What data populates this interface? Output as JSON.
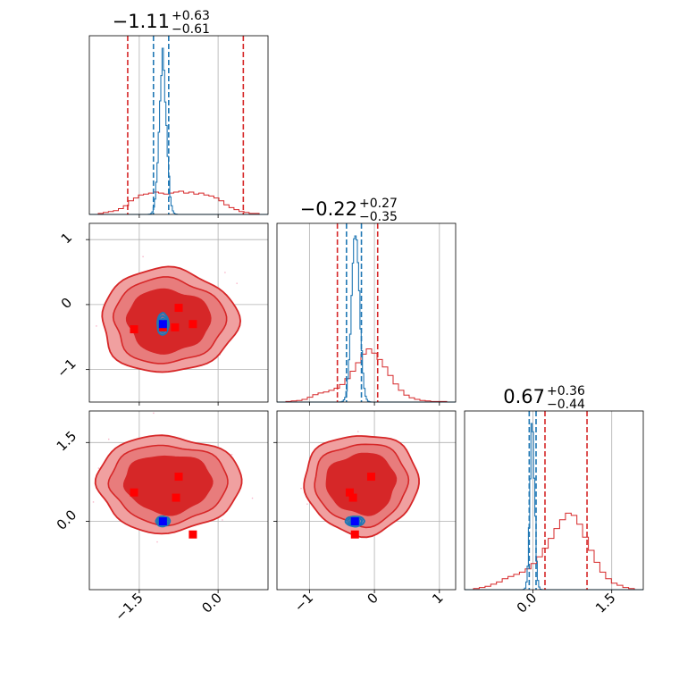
{
  "colors": {
    "prior": "#d62728",
    "posterior": "#1f77b4",
    "prior_fill_light": "#f0a0a0",
    "prior_fill_dark": "#d62728",
    "truth_marker": "#0000ff",
    "sample_marker": "#ff0000",
    "scatter": "#f8b4c8"
  },
  "chart_data": {
    "type": "corner",
    "grid": true,
    "parameters": [
      {
        "title": {
          "median": "−1.11",
          "plus": "+0.63",
          "minus": "−0.61"
        },
        "range": [
          -2.45,
          0.95
        ],
        "xticks": [
          {
            "v": -1.5,
            "label": "−1.5"
          },
          {
            "v": 0.0,
            "label": "0.0"
          }
        ],
        "yticks": [],
        "prior_quantiles": [
          -1.72,
          0.48
        ],
        "posterior_quantiles": [
          -1.23,
          -0.94
        ],
        "prior_hist": [
          1,
          2,
          3,
          4,
          6,
          9,
          14,
          17,
          20,
          21,
          22,
          23,
          22,
          21,
          22,
          23,
          24,
          22,
          23,
          21,
          22,
          20,
          19,
          17,
          14,
          10,
          7,
          5,
          3,
          2,
          1,
          1
        ],
        "posterior_peak": -1.05,
        "posterior_sigma": 0.07
      },
      {
        "title": {
          "median": "−0.22",
          "plus": "+0.27",
          "minus": "−0.35"
        },
        "range": [
          -1.5,
          1.25
        ],
        "xticks": [
          {
            "v": -1,
            "label": "−1"
          },
          {
            "v": 0,
            "label": "0"
          },
          {
            "v": 1,
            "label": "1"
          }
        ],
        "yticks": [
          {
            "v": -1,
            "label": "−1"
          },
          {
            "v": 0,
            "label": "0"
          },
          {
            "v": 1,
            "label": "1"
          }
        ],
        "prior_quantiles": [
          -0.57,
          0.05
        ],
        "posterior_quantiles": [
          -0.43,
          -0.2
        ],
        "prior_hist": [
          1,
          2,
          3,
          5,
          9,
          14,
          17,
          19,
          22,
          26,
          33,
          44,
          58,
          74,
          90,
          100,
          92,
          80,
          66,
          50,
          34,
          22,
          13,
          8,
          5,
          3,
          2,
          1,
          1,
          1
        ],
        "posterior_peak": -0.29,
        "posterior_sigma": 0.06
      },
      {
        "title": {
          "median": "0.67",
          "plus": "+0.36",
          "minus": "−0.44"
        },
        "range": [
          -1.3,
          2.1
        ],
        "xticks": [
          {
            "v": 0.0,
            "label": "0.0"
          },
          {
            "v": 1.5,
            "label": "1.5"
          }
        ],
        "yticks": [
          {
            "v": 0.0,
            "label": "0.0"
          },
          {
            "v": 1.5,
            "label": "1.5"
          }
        ],
        "prior_quantiles": [
          0.23,
          1.03
        ],
        "posterior_quantiles": [
          -0.07,
          0.06
        ],
        "prior_hist": [
          1,
          2,
          3,
          5,
          7,
          10,
          12,
          14,
          16,
          19,
          24,
          30,
          38,
          47,
          56,
          64,
          70,
          68,
          60,
          48,
          36,
          25,
          16,
          10,
          6,
          4,
          2,
          1
        ],
        "posterior_peak": -0.01,
        "posterior_sigma": 0.045
      }
    ],
    "pairs": [
      {
        "x_param": 0,
        "y_param": 1,
        "prior_center": [
          -0.95,
          -0.25
        ],
        "prior_spread": [
          0.68,
          0.42
        ],
        "posterior_center": [
          -1.05,
          -0.3
        ],
        "posterior_spread": [
          0.09,
          0.14
        ],
        "truth": [
          -1.05,
          -0.3
        ],
        "samples": [
          [
            -1.6,
            -0.38
          ],
          [
            -0.75,
            -0.05
          ],
          [
            -1.05,
            -0.35
          ],
          [
            -0.82,
            -0.35
          ],
          [
            -0.48,
            -0.3
          ]
        ]
      },
      {
        "x_param": 0,
        "y_param": 2,
        "prior_center": [
          -0.95,
          0.72
        ],
        "prior_spread": [
          0.72,
          0.48
        ],
        "posterior_center": [
          -1.05,
          0.0
        ],
        "posterior_spread": [
          0.11,
          0.08
        ],
        "truth": [
          -1.05,
          0.0
        ],
        "samples": [
          [
            -1.6,
            0.55
          ],
          [
            -0.75,
            0.85
          ],
          [
            -0.8,
            0.45
          ],
          [
            -0.48,
            -0.25
          ]
        ]
      },
      {
        "x_param": 1,
        "y_param": 2,
        "prior_center": [
          -0.2,
          0.72
        ],
        "prior_spread": [
          0.46,
          0.5
        ],
        "posterior_center": [
          -0.3,
          0.0
        ],
        "posterior_spread": [
          0.12,
          0.08
        ],
        "truth": [
          -0.3,
          0.0
        ],
        "samples": [
          [
            -0.05,
            0.85
          ],
          [
            -0.38,
            0.55
          ],
          [
            -0.33,
            0.45
          ],
          [
            -0.3,
            -0.25
          ]
        ]
      }
    ]
  }
}
